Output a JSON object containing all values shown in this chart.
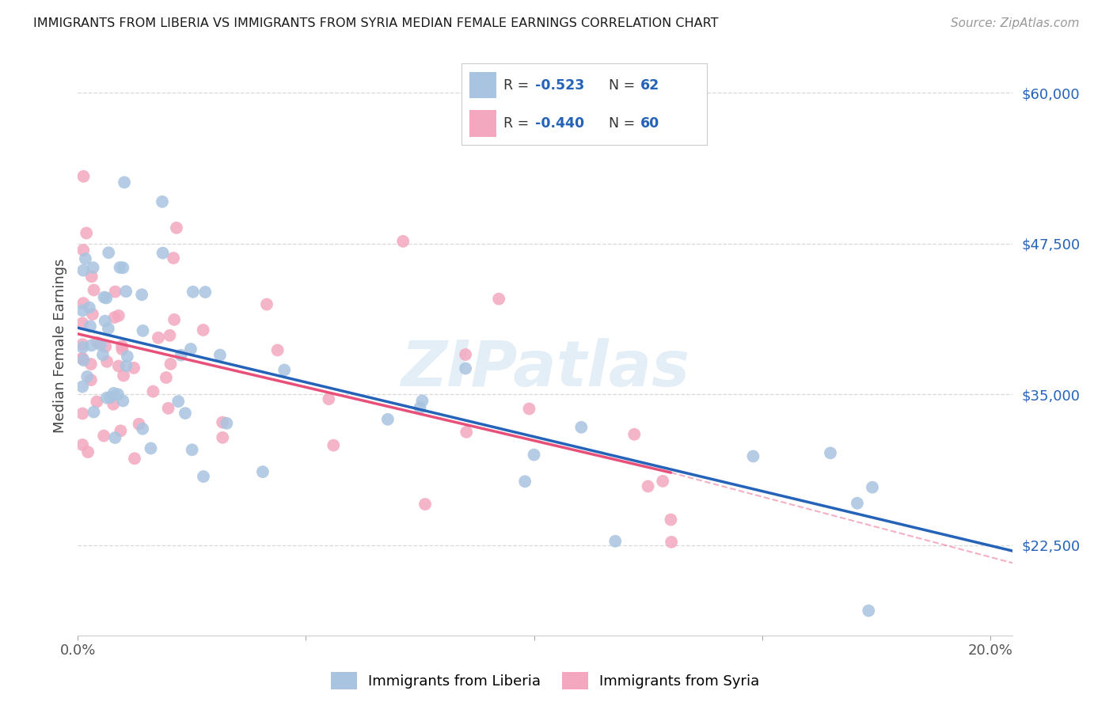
{
  "title": "IMMIGRANTS FROM LIBERIA VS IMMIGRANTS FROM SYRIA MEDIAN FEMALE EARNINGS CORRELATION CHART",
  "source": "Source: ZipAtlas.com",
  "ylabel": "Median Female Earnings",
  "xlim": [
    0.0,
    0.205
  ],
  "ylim": [
    15000,
    63000
  ],
  "yticks": [
    22500,
    35000,
    47500,
    60000
  ],
  "ytick_labels": [
    "$22,500",
    "$35,000",
    "$47,500",
    "$60,000"
  ],
  "xticks": [
    0.0,
    0.05,
    0.1,
    0.15,
    0.2
  ],
  "xtick_labels": [
    "0.0%",
    "",
    "",
    "",
    "20.0%"
  ],
  "liberia_color": "#a8c4e0",
  "liberia_line_color": "#2563b8",
  "syria_color": "#f4a8bf",
  "syria_line_color": "#e8507a",
  "r_liberia": -0.523,
  "n_liberia": 62,
  "r_syria": -0.44,
  "n_syria": 60,
  "watermark": "ZIPatlas",
  "background_color": "#ffffff",
  "grid_color": "#d8d8d8",
  "lib_line_x0": 0.0,
  "lib_line_y0": 40500,
  "lib_line_x1": 0.205,
  "lib_line_y1": 22000,
  "syr_line_x0": 0.0,
  "syr_line_y0": 40000,
  "syr_line_x1_solid": 0.13,
  "syr_line_y1_solid": 28500,
  "syr_line_x1_dash": 0.205,
  "syr_line_y1_dash": 21000
}
